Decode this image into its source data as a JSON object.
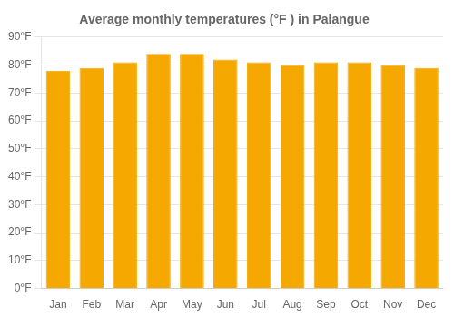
{
  "chart_data": {
    "type": "bar",
    "title": "Average monthly temperatures (°F ) in Palangue",
    "categories": [
      "Jan",
      "Feb",
      "Mar",
      "Apr",
      "May",
      "Jun",
      "Jul",
      "Aug",
      "Sep",
      "Oct",
      "Nov",
      "Dec"
    ],
    "values": [
      78,
      79,
      81,
      84,
      84,
      82,
      81,
      80,
      81,
      81,
      80,
      79
    ],
    "color": "#F5A800",
    "ylim": [
      0,
      90
    ],
    "yticks": [
      {
        "value": 0,
        "label": "0°F"
      },
      {
        "value": 10,
        "label": "10°F"
      },
      {
        "value": 20,
        "label": "20°F"
      },
      {
        "value": 30,
        "label": "30°F"
      },
      {
        "value": 40,
        "label": "40°F"
      },
      {
        "value": 50,
        "label": "50°F"
      },
      {
        "value": 60,
        "label": "60°F"
      },
      {
        "value": 70,
        "label": "70°F"
      },
      {
        "value": 80,
        "label": "80°F"
      },
      {
        "value": 90,
        "label": "90°F"
      }
    ],
    "grid": true
  }
}
